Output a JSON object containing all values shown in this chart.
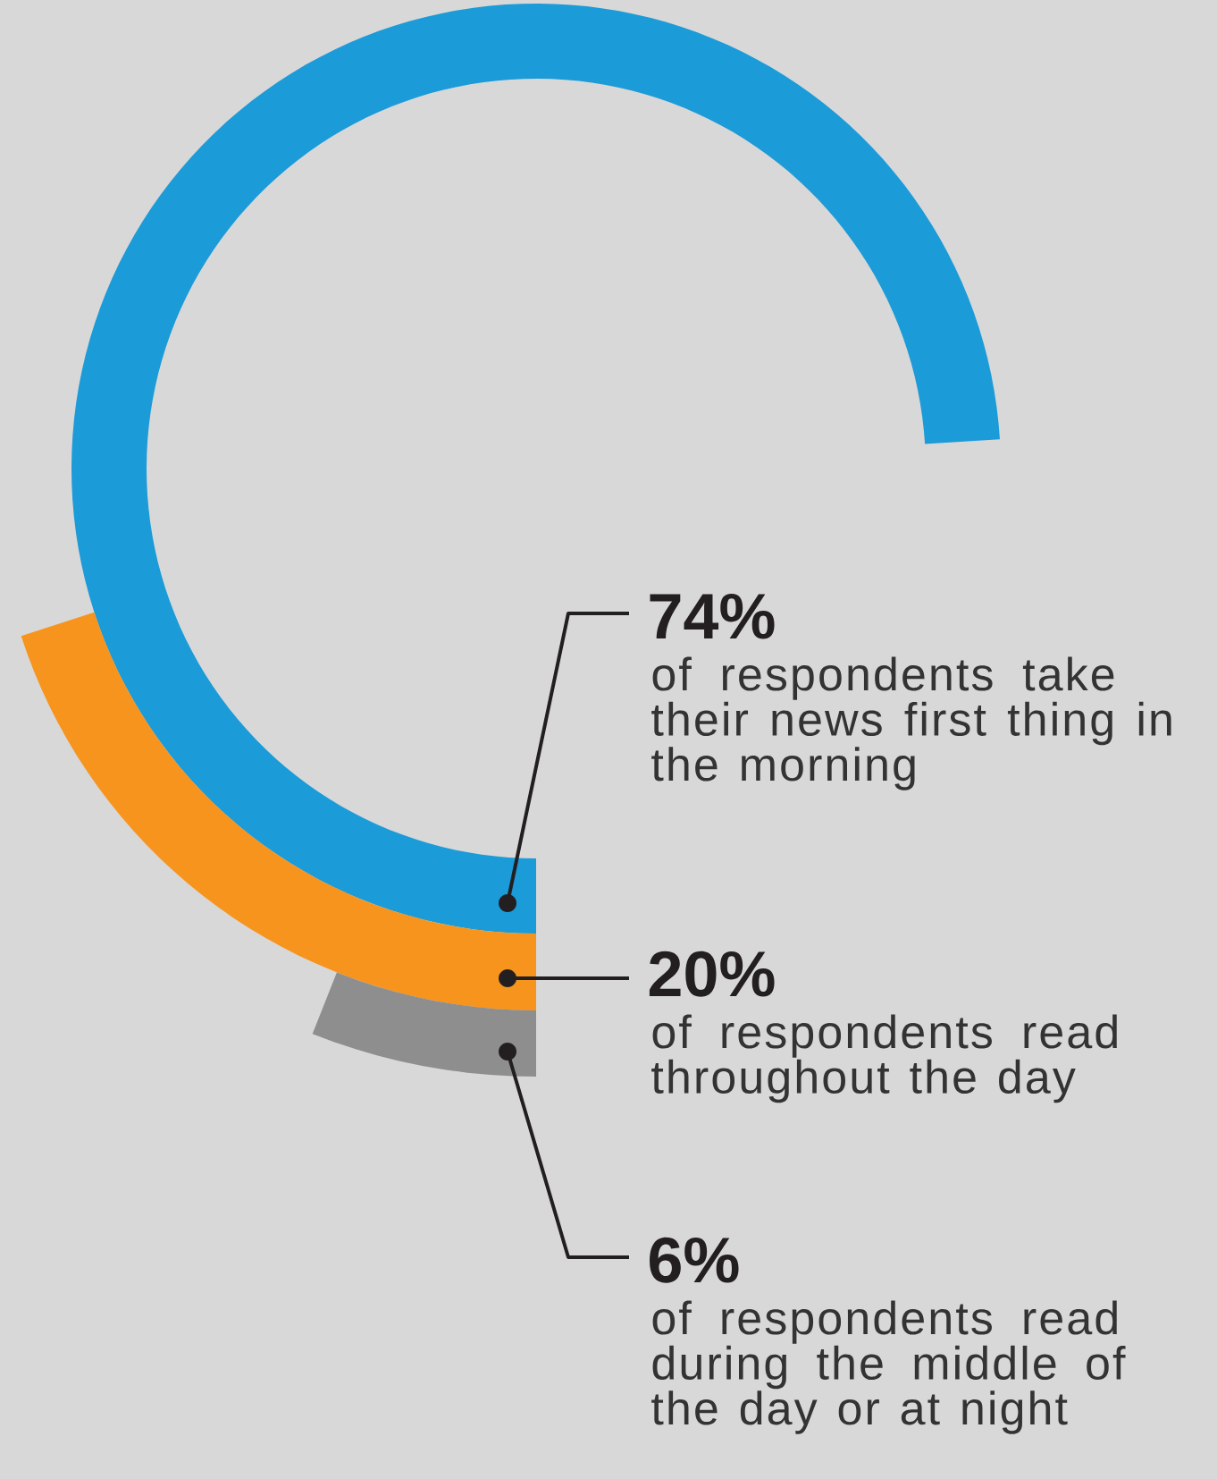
{
  "chart_data": {
    "type": "other",
    "categories": [
      "of respondents take their news first thing in the morning",
      "of respondents read throughout the day",
      "of respondents read during the middle of the day or at night"
    ],
    "values": [
      74,
      20,
      6
    ],
    "value_labels": [
      "74%",
      "20%",
      "6%"
    ],
    "colors": [
      "#1b9bd8",
      "#f7941d",
      "#8e8e8e"
    ]
  }
}
